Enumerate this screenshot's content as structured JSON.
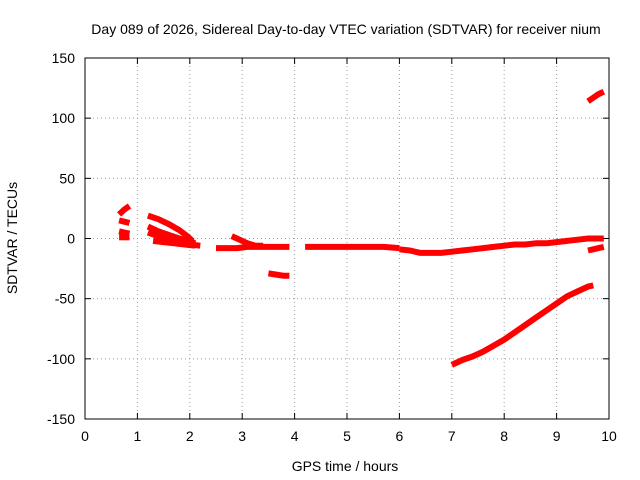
{
  "chart_data": {
    "type": "scatter",
    "title": "Day 089 of 2026, Sidereal Day-to-day VTEC variation (SDTVAR) for receiver nium",
    "xlabel": "GPS time / hours",
    "ylabel": "SDTVAR / TECUs",
    "xlim": [
      0,
      10
    ],
    "ylim": [
      -150,
      150
    ],
    "x_ticks": [
      0,
      1,
      2,
      3,
      4,
      5,
      6,
      7,
      8,
      9,
      10
    ],
    "y_ticks": [
      -150,
      -100,
      -50,
      0,
      50,
      100,
      150
    ],
    "grid": true,
    "series_color": "#ff0000",
    "series": [
      {
        "points": [
          [
            0.65,
            20
          ],
          [
            0.75,
            24
          ],
          [
            0.85,
            27
          ]
        ]
      },
      {
        "points": [
          [
            0.65,
            15
          ],
          [
            0.75,
            14
          ],
          [
            0.85,
            13
          ]
        ]
      },
      {
        "points": [
          [
            0.65,
            6
          ],
          [
            0.75,
            5
          ],
          [
            0.85,
            4
          ]
        ]
      },
      {
        "points": [
          [
            0.65,
            1
          ],
          [
            0.75,
            1
          ],
          [
            0.85,
            1
          ]
        ]
      },
      {
        "points": [
          [
            1.2,
            19
          ],
          [
            1.4,
            16
          ],
          [
            1.6,
            12
          ],
          [
            1.8,
            7
          ],
          [
            1.95,
            2
          ],
          [
            2.05,
            -2
          ]
        ]
      },
      {
        "points": [
          [
            1.2,
            10
          ],
          [
            1.4,
            6
          ],
          [
            1.6,
            3
          ],
          [
            1.8,
            0
          ],
          [
            2.0,
            -2
          ],
          [
            2.1,
            -4
          ]
        ]
      },
      {
        "points": [
          [
            1.2,
            5
          ],
          [
            1.4,
            2
          ],
          [
            1.6,
            -1
          ],
          [
            1.8,
            -3
          ],
          [
            2.0,
            -5
          ],
          [
            2.2,
            -6
          ]
        ]
      },
      {
        "points": [
          [
            1.3,
            -2
          ],
          [
            1.5,
            -3
          ],
          [
            1.7,
            -4
          ],
          [
            1.9,
            -5
          ],
          [
            2.1,
            -6
          ]
        ]
      },
      {
        "points": [
          [
            2.5,
            -8
          ],
          [
            2.7,
            -8
          ],
          [
            2.9,
            -8
          ],
          [
            3.1,
            -7
          ],
          [
            3.3,
            -7
          ],
          [
            3.5,
            -7
          ],
          [
            3.7,
            -7
          ],
          [
            3.9,
            -7
          ]
        ]
      },
      {
        "points": [
          [
            2.8,
            2
          ],
          [
            2.95,
            -1
          ],
          [
            3.1,
            -4
          ],
          [
            3.25,
            -6
          ],
          [
            3.4,
            -6
          ]
        ]
      },
      {
        "points": [
          [
            3.5,
            -29
          ],
          [
            3.65,
            -30
          ],
          [
            3.8,
            -31
          ],
          [
            3.9,
            -31
          ]
        ]
      },
      {
        "points": [
          [
            4.2,
            -7
          ],
          [
            4.5,
            -7
          ],
          [
            4.8,
            -7
          ],
          [
            5.1,
            -7
          ],
          [
            5.4,
            -7
          ],
          [
            5.7,
            -7
          ],
          [
            6.0,
            -8
          ]
        ]
      },
      {
        "points": [
          [
            6.0,
            -9
          ],
          [
            6.2,
            -10
          ],
          [
            6.4,
            -12
          ],
          [
            6.6,
            -12
          ],
          [
            6.8,
            -12
          ],
          [
            7.0,
            -11
          ],
          [
            7.2,
            -10
          ],
          [
            7.4,
            -9
          ],
          [
            7.6,
            -8
          ],
          [
            7.8,
            -7
          ],
          [
            8.0,
            -6
          ],
          [
            8.2,
            -5
          ],
          [
            8.4,
            -5
          ],
          [
            8.6,
            -4
          ],
          [
            8.8,
            -4
          ],
          [
            9.0,
            -3
          ],
          [
            9.2,
            -2
          ],
          [
            9.4,
            -1
          ],
          [
            9.6,
            0
          ],
          [
            9.8,
            0
          ],
          [
            9.9,
            0
          ]
        ]
      },
      {
        "points": [
          [
            7.0,
            -105
          ],
          [
            7.2,
            -101
          ],
          [
            7.4,
            -98
          ],
          [
            7.6,
            -94
          ],
          [
            7.8,
            -89
          ],
          [
            8.0,
            -84
          ],
          [
            8.2,
            -78
          ],
          [
            8.4,
            -72
          ],
          [
            8.6,
            -66
          ],
          [
            8.8,
            -60
          ],
          [
            9.0,
            -54
          ],
          [
            9.2,
            -48
          ],
          [
            9.4,
            -44
          ],
          [
            9.6,
            -40
          ],
          [
            9.7,
            -39
          ]
        ]
      },
      {
        "points": [
          [
            9.6,
            -10
          ],
          [
            9.7,
            -9
          ],
          [
            9.8,
            -8
          ],
          [
            9.9,
            -7
          ]
        ]
      },
      {
        "points": [
          [
            9.6,
            114
          ],
          [
            9.7,
            117
          ],
          [
            9.8,
            120
          ],
          [
            9.9,
            122
          ]
        ]
      }
    ]
  }
}
